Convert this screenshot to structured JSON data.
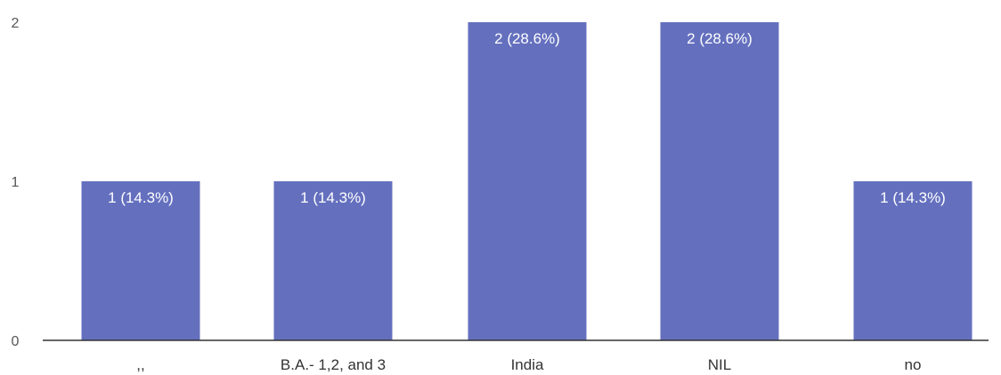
{
  "chart_data": {
    "type": "bar",
    "categories": [
      ",,",
      "B.A.- 1,2, and 3",
      "India",
      "NIL",
      "no"
    ],
    "values": [
      1,
      1,
      2,
      2,
      1
    ],
    "data_labels": [
      "1 (14.3%)",
      "1 (14.3%)",
      "2 (28.6%)",
      "2 (28.6%)",
      "1 (14.3%)"
    ],
    "y_ticks": [
      "0",
      "1",
      "2"
    ],
    "ylim": [
      0,
      2
    ],
    "grid": false,
    "legend": "none",
    "title": "",
    "xlabel": "",
    "ylabel": "",
    "colors": {
      "bar": "#6470be",
      "bar_label": "#ffffff",
      "axis": "#333333",
      "tick_label": "#555555"
    }
  }
}
